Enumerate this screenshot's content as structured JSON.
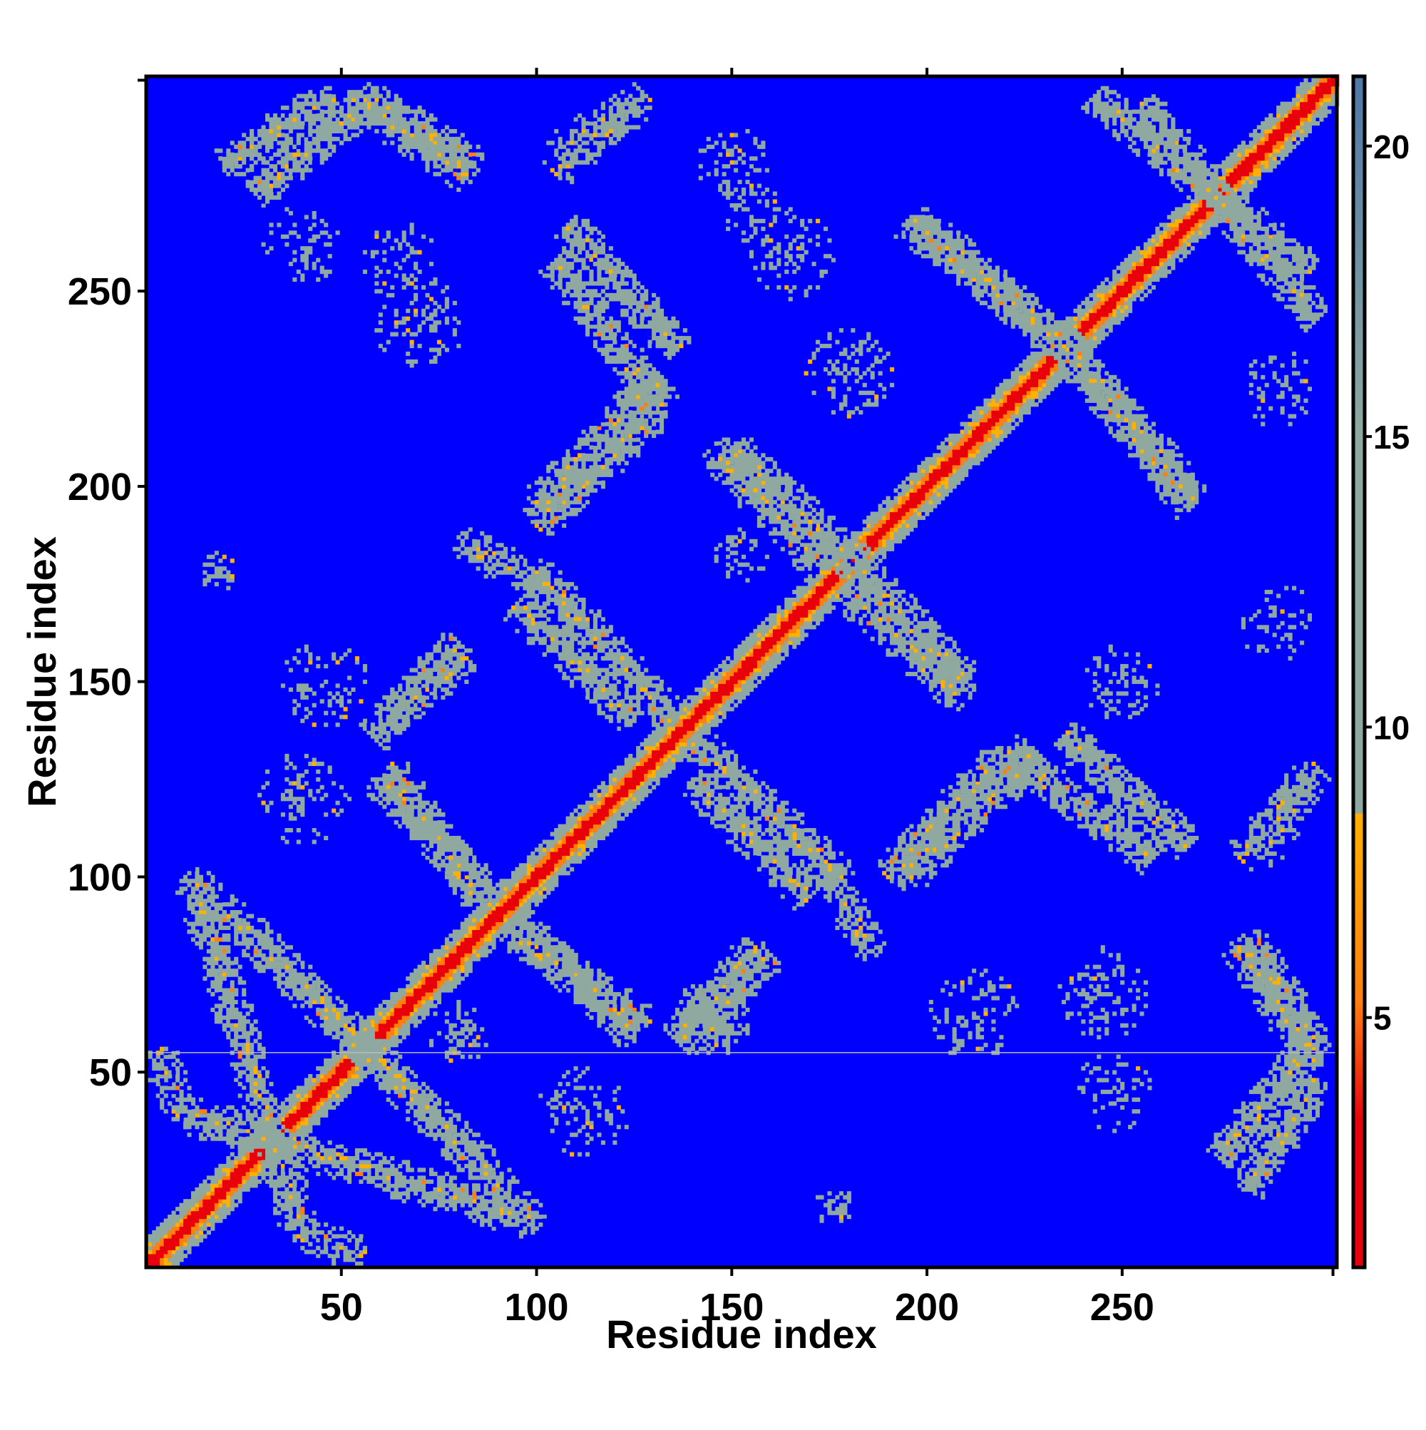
{
  "chart_data": {
    "type": "heatmap",
    "title": "",
    "xlabel": "Residue index",
    "ylabel": "Residue index",
    "xlim": [
      0,
      305
    ],
    "ylim": [
      0,
      305
    ],
    "x_ticks": [
      50,
      100,
      150,
      200,
      250
    ],
    "y_ticks": [
      50,
      100,
      150,
      200,
      250
    ],
    "x_tick_labels": [
      "50",
      "100",
      "150",
      "200",
      "250"
    ],
    "y_tick_labels": [
      "50",
      "100",
      "150",
      "200",
      "250"
    ],
    "colorbar": {
      "range": [
        0.7,
        21.2
      ],
      "ticks": [
        5,
        10,
        15,
        20
      ],
      "tick_labels": [
        "5",
        "10",
        "15",
        "20"
      ],
      "cutoff": 8.5,
      "colors": {
        "low": "#e8000b",
        "mid": "#ff7f0e",
        "near": "#ffb000",
        "high": "#8fa9a0",
        "background": "#0000ff"
      }
    },
    "matrix_type": "symmetric residue-residue distance map",
    "grid": false,
    "diagonal_band": {
      "from": 1,
      "to": 305
    },
    "contact_bands": [
      {
        "i0": 13,
        "j0": 96,
        "i1": 40,
        "j1": 8,
        "strength": 0.85
      },
      {
        "i0": 40,
        "j0": 8,
        "i1": 56,
        "j1": 4,
        "strength": 0.5
      },
      {
        "i0": 52,
        "j0": 60,
        "i1": 90,
        "j1": 22,
        "strength": 0.9
      },
      {
        "i0": 90,
        "j0": 22,
        "i1": 100,
        "j1": 10,
        "strength": 0.6
      },
      {
        "i0": 60,
        "j0": 125,
        "i1": 88,
        "j1": 95,
        "strength": 0.85
      },
      {
        "i0": 62,
        "j0": 140,
        "i1": 80,
        "j1": 160,
        "strength": 0.7
      },
      {
        "i0": 95,
        "j0": 85,
        "i1": 128,
        "j1": 62,
        "strength": 0.85
      },
      {
        "i0": 136,
        "j0": 58,
        "i1": 156,
        "j1": 82,
        "strength": 0.75
      },
      {
        "i0": 100,
        "j0": 178,
        "i1": 135,
        "j1": 140,
        "strength": 0.85
      },
      {
        "i0": 140,
        "j0": 125,
        "i1": 170,
        "j1": 95,
        "strength": 0.85
      },
      {
        "i0": 176,
        "j0": 100,
        "i1": 186,
        "j1": 80,
        "strength": 0.6
      },
      {
        "i0": 190,
        "j0": 100,
        "i1": 220,
        "j1": 132,
        "strength": 0.85
      },
      {
        "i0": 220,
        "j0": 132,
        "i1": 258,
        "j1": 105,
        "strength": 0.85
      },
      {
        "i0": 180,
        "j0": 182,
        "i1": 210,
        "j1": 150,
        "strength": 0.85
      },
      {
        "i0": 145,
        "j0": 210,
        "i1": 172,
        "j1": 180,
        "strength": 0.8
      },
      {
        "i0": 100,
        "j0": 195,
        "i1": 132,
        "j1": 228,
        "strength": 0.85
      },
      {
        "i0": 108,
        "j0": 267,
        "i1": 136,
        "j1": 235,
        "strength": 0.85
      },
      {
        "i0": 195,
        "j0": 268,
        "i1": 240,
        "j1": 232,
        "strength": 0.85
      },
      {
        "i0": 232,
        "j0": 240,
        "i1": 268,
        "j1": 198,
        "strength": 0.85
      },
      {
        "i0": 20,
        "j0": 282,
        "i1": 48,
        "j1": 300,
        "strength": 0.85
      },
      {
        "i0": 55,
        "j0": 300,
        "i1": 85,
        "j1": 282,
        "strength": 0.85
      },
      {
        "i0": 105,
        "j0": 285,
        "i1": 125,
        "j1": 298,
        "strength": 0.5
      },
      {
        "i0": 255,
        "j0": 298,
        "i1": 300,
        "j1": 243,
        "strength": 0.75
      },
      {
        "i0": 275,
        "j0": 28,
        "i1": 298,
        "j1": 56,
        "strength": 0.85
      },
      {
        "i0": 280,
        "j0": 82,
        "i1": 300,
        "j1": 52,
        "strength": 0.85
      },
      {
        "i0": 280,
        "j0": 105,
        "i1": 300,
        "j1": 128,
        "strength": 0.5
      }
    ],
    "contact_patches": [
      {
        "i": 18,
        "j": 178,
        "r": 5,
        "strength": 0.55
      },
      {
        "i": 176,
        "j": 16,
        "r": 5,
        "strength": 0.55
      },
      {
        "i": 80,
        "j": 60,
        "r": 8,
        "strength": 0.4
      },
      {
        "i": 152,
        "j": 182,
        "r": 7,
        "strength": 0.4
      },
      {
        "i": 145,
        "j": 64,
        "r": 10,
        "strength": 0.75
      },
      {
        "i": 70,
        "j": 242,
        "r": 12,
        "strength": 0.35
      },
      {
        "i": 40,
        "j": 262,
        "r": 10,
        "strength": 0.3
      },
      {
        "i": 65,
        "j": 258,
        "r": 10,
        "strength": 0.3
      },
      {
        "i": 165,
        "j": 260,
        "r": 12,
        "strength": 0.3
      },
      {
        "i": 150,
        "j": 282,
        "r": 10,
        "strength": 0.3
      },
      {
        "i": 112,
        "j": 40,
        "r": 12,
        "strength": 0.3
      },
      {
        "i": 40,
        "j": 120,
        "r": 12,
        "strength": 0.3
      },
      {
        "i": 45,
        "j": 150,
        "r": 12,
        "strength": 0.3
      },
      {
        "i": 212,
        "j": 65,
        "r": 12,
        "strength": 0.3
      },
      {
        "i": 245,
        "j": 70,
        "r": 12,
        "strength": 0.35
      },
      {
        "i": 250,
        "j": 150,
        "r": 10,
        "strength": 0.3
      },
      {
        "i": 290,
        "j": 165,
        "r": 10,
        "strength": 0.3
      },
      {
        "i": 290,
        "j": 225,
        "r": 10,
        "strength": 0.3
      },
      {
        "i": 248,
        "j": 45,
        "r": 10,
        "strength": 0.3
      },
      {
        "i": 180,
        "j": 230,
        "r": 12,
        "strength": 0.3
      },
      {
        "i": 155,
        "j": 270,
        "r": 8,
        "strength": 0.3
      }
    ],
    "annotations": [
      {
        "type": "horizontal_line",
        "y": 55,
        "color": "#bbbbbb"
      }
    ]
  }
}
